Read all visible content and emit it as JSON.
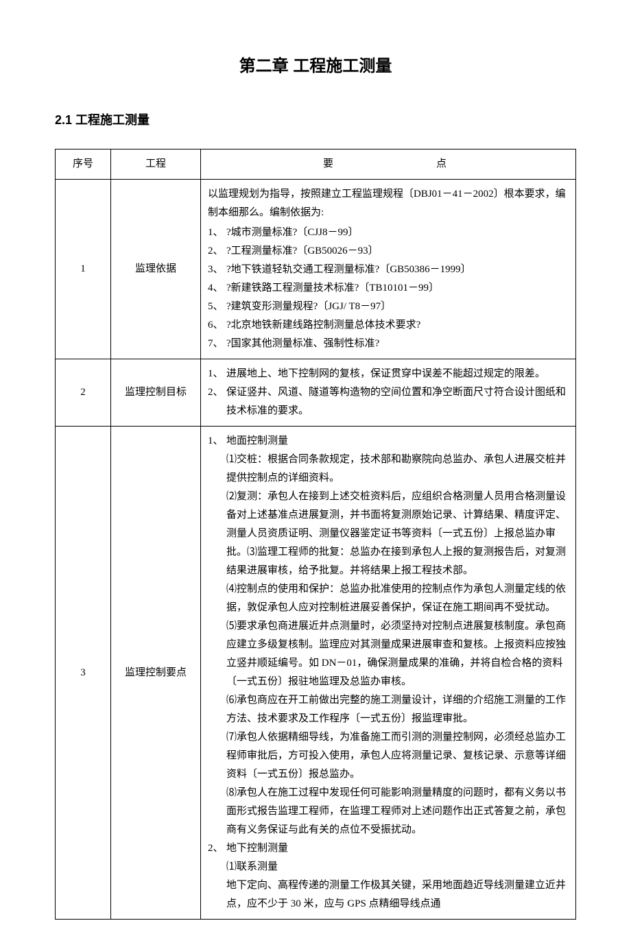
{
  "chapter_title": "第二章 工程施工测量",
  "section_title": "2.1 工程施工测量",
  "table": {
    "headers": {
      "num": "序号",
      "project": "工程",
      "points": "要点"
    },
    "rows": [
      {
        "num": "1",
        "project": "监理依据",
        "intro": "以监理规划为指导，按照建立工程监理规程〔DBJ01－41－2002〕根本要求，编制本细那么。编制依据为:",
        "items": [
          {
            "n": "1、",
            "t": "?城市测量标准?〔CJJ8－99〕"
          },
          {
            "n": "2、",
            "t": "?工程测量标准?〔GB50026－93〕"
          },
          {
            "n": "3、",
            "t": "?地下铁道轻轨交通工程测量标准?〔GB50386－1999〕"
          },
          {
            "n": "4、",
            "t": "?新建铁路工程测量技术标准?〔TB10101－99〕"
          },
          {
            "n": "5、",
            "t": "?建筑变形测量规程?〔JGJ/ T8－97〕"
          },
          {
            "n": "6、",
            "t": "?北京地铁新建线路控制测量总体技术要求?"
          },
          {
            "n": "7、",
            "t": "?国家其他测量标准、强制性标准?"
          }
        ]
      },
      {
        "num": "2",
        "project": "监理控制目标",
        "items": [
          {
            "n": "1、",
            "t": "进展地上、地下控制网的复核，保证贯穿中误差不能超过规定的限差。"
          },
          {
            "n": "2、",
            "t": "保证竖井、风道、隧道等构造物的空间位置和净空断面尺寸符合设计图纸和技术标准的要求。"
          }
        ]
      },
      {
        "num": "3",
        "project": "监理控制要点",
        "items": [
          {
            "n": "1、",
            "t": "地面控制测量",
            "sub": [
              "⑴交桩：根据合同条款规定，技术部和勘察院向总监办、承包人进展交桩并提供控制点的详细资料。",
              "⑵复测：承包人在接到上述交桩资料后，应组织合格测量人员用合格测量设备对上述基准点进展复测，并书面将复测原始记录、计算结果、精度评定、测量人员资质证明、测量仪器鉴定证书等资料〔一式五份〕上报总监办审批。⑶监理工程师的批复：总监办在接到承包人上报的复测报告后，对复测结果进展审核，给予批复。并将结果上报工程技术部。",
              "⑷控制点的使用和保护：总监办批准使用的控制点作为承包人测量定线的依据，敦促承包人应对控制桩进展妥善保护，保证在施工期间再不受扰动。",
              "⑸要求承包商进展近井点测量时，必须坚持对控制点进展复核制度。承包商应建立多级复核制。监理应对其测量成果进展审查和复核。上报资料应按独立竖井顺延编号。如 DN－01，确保测量成果的准确，并将自检合格的资料〔一式五份〕报驻地监理及总监办审核。",
              "⑹承包商应在开工前做出完整的施工测量设计，详细的介绍施工测量的工作方法、技术要求及工作程序〔一式五份〕报监理审批。",
              "⑺承包人依据精细导线，为准备施工而引测的测量控制网，必须经总监办工程师审批后，方可投入使用，承包人应将测量记录、复核记录、示意等详细资料〔一式五份〕报总监办。",
              "⑻承包人在施工过程中发现任何可能影响测量精度的问题时，都有义务以书面形式报告监理工程师，在监理工程师对上述问题作出正式答复之前，承包商有义务保证与此有关的点位不受振扰动。"
            ]
          },
          {
            "n": "2、",
            "t": "地下控制测量",
            "sub": [
              "⑴联系测量",
              "地下定向、高程传递的测量工作极其关键，采用地面趋近导线测量建立近井点，应不少于 30 米，应与 GPS 点精细导线点通"
            ]
          }
        ]
      }
    ]
  }
}
